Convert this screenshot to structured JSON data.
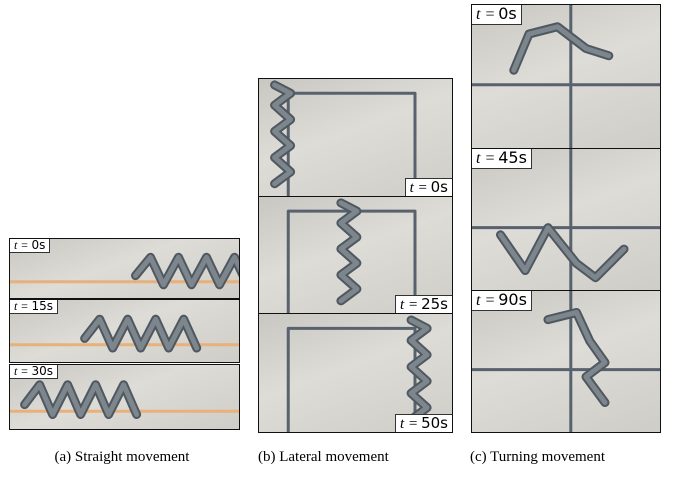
{
  "panels": [
    {
      "caption": "(a) Straight movement",
      "frames": [
        {
          "symbol": "t =",
          "time": "0s"
        },
        {
          "symbol": "t =",
          "time": "15s"
        },
        {
          "symbol": "t =",
          "time": "30s"
        }
      ]
    },
    {
      "caption": "(b) Lateral movement",
      "frames": [
        {
          "symbol": "t =",
          "time": "0s"
        },
        {
          "symbol": "t =",
          "time": "25s"
        },
        {
          "symbol": "t =",
          "time": "50s"
        }
      ]
    },
    {
      "caption": "(c) Turning movement",
      "frames": [
        {
          "symbol": "t =",
          "time": "0s"
        },
        {
          "symbol": "t =",
          "time": "45s"
        },
        {
          "symbol": "t =",
          "time": "90s"
        }
      ]
    }
  ]
}
